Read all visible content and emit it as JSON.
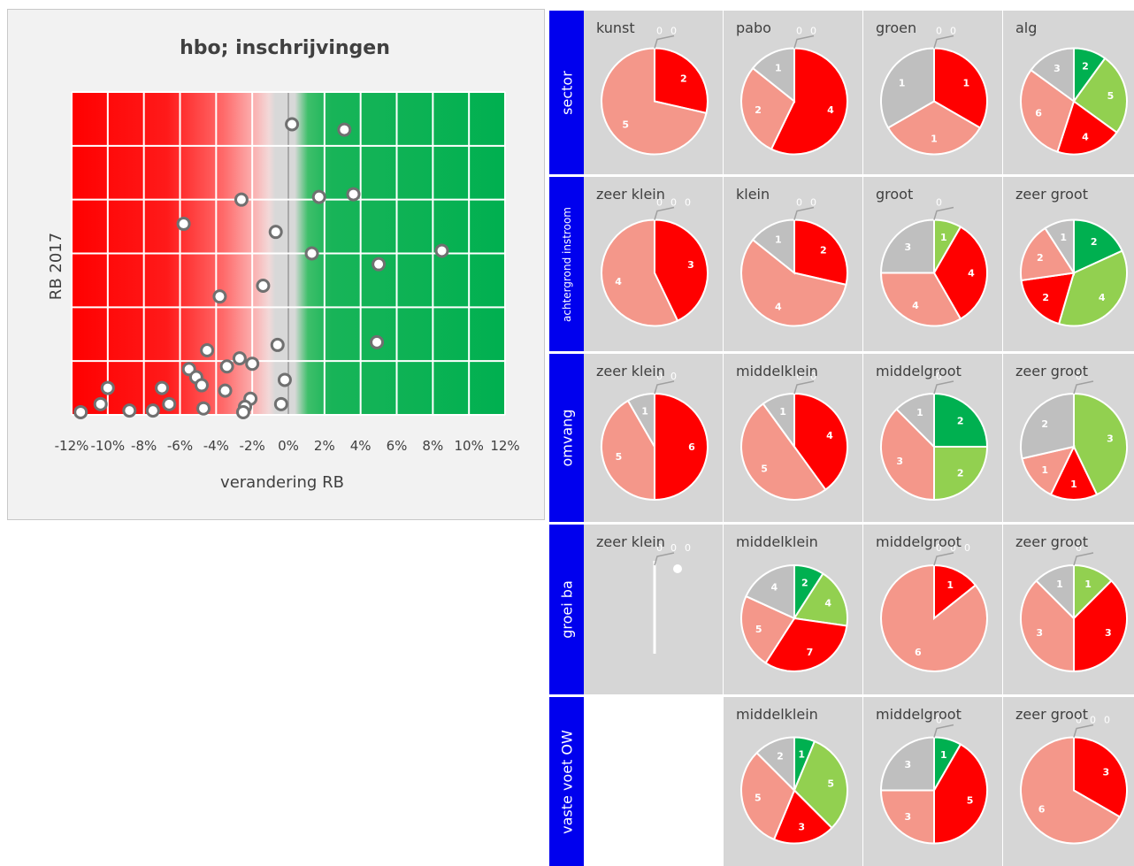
{
  "colors": {
    "dark_green": "#00b050",
    "light_green": "#92d050",
    "red": "#ff0000",
    "salmon": "#f4978a",
    "grey": "#bfbfbf",
    "row_label_bg": "#0000ee"
  },
  "chart_data": [
    {
      "type": "scatter",
      "title": "hbo; inschrijvingen",
      "xlabel": "verandering RB",
      "ylabel": "RB 2017",
      "xlim": [
        -12,
        12
      ],
      "x_ticks": [
        "-12%",
        "-10%",
        "-8%",
        "-6%",
        "-4%",
        "-2%",
        "0%",
        "2%",
        "4%",
        "6%",
        "8%",
        "10%",
        "12%"
      ],
      "grid": true,
      "points": [
        {
          "x": 0.2,
          "y": 5.4
        },
        {
          "x": 3.1,
          "y": 5.3
        },
        {
          "x": -2.6,
          "y": 4.0
        },
        {
          "x": 1.7,
          "y": 4.05
        },
        {
          "x": 3.6,
          "y": 4.1
        },
        {
          "x": -5.8,
          "y": 3.55
        },
        {
          "x": -0.7,
          "y": 3.4
        },
        {
          "x": 1.3,
          "y": 3.0
        },
        {
          "x": 8.5,
          "y": 3.05
        },
        {
          "x": 5.0,
          "y": 2.8
        },
        {
          "x": -1.4,
          "y": 2.4
        },
        {
          "x": -3.8,
          "y": 2.2
        },
        {
          "x": -0.6,
          "y": 1.3
        },
        {
          "x": 4.9,
          "y": 1.35
        },
        {
          "x": -4.5,
          "y": 1.2
        },
        {
          "x": -2.7,
          "y": 1.05
        },
        {
          "x": -2.0,
          "y": 0.95
        },
        {
          "x": -3.4,
          "y": 0.9
        },
        {
          "x": -5.5,
          "y": 0.85
        },
        {
          "x": -5.1,
          "y": 0.7
        },
        {
          "x": -4.8,
          "y": 0.55
        },
        {
          "x": -3.5,
          "y": 0.45
        },
        {
          "x": -10.0,
          "y": 0.5
        },
        {
          "x": -7.0,
          "y": 0.5
        },
        {
          "x": -0.2,
          "y": 0.65
        },
        {
          "x": -2.1,
          "y": 0.3
        },
        {
          "x": -6.6,
          "y": 0.2
        },
        {
          "x": -10.4,
          "y": 0.2
        },
        {
          "x": -2.4,
          "y": 0.15
        },
        {
          "x": -0.4,
          "y": 0.2
        },
        {
          "x": -4.7,
          "y": 0.12
        },
        {
          "x": -2.5,
          "y": 0.05
        },
        {
          "x": -11.5,
          "y": 0.05
        },
        {
          "x": -8.8,
          "y": 0.08
        },
        {
          "x": -7.5,
          "y": 0.08
        }
      ]
    },
    {
      "type": "pie",
      "row_labels": [
        "sector",
        "achtergrond instroom",
        "omvang",
        "groei ba",
        "vaste voet OW"
      ],
      "legend_note": "slice order per pie: dark green, light green, red, salmon, grey",
      "pies": [
        {
          "row": 0,
          "col": 0,
          "title": "kunst",
          "values": [
            0,
            0,
            2,
            5,
            0
          ],
          "zero_labels": [
            "0",
            "0"
          ]
        },
        {
          "row": 0,
          "col": 1,
          "title": "pabo",
          "values": [
            0,
            0,
            4,
            2,
            1
          ],
          "zero_labels": [
            "0",
            "0"
          ]
        },
        {
          "row": 0,
          "col": 2,
          "title": "groen",
          "values": [
            0,
            0,
            1,
            1,
            1
          ],
          "zero_labels": [
            "0",
            "0"
          ]
        },
        {
          "row": 0,
          "col": 3,
          "title": "alg",
          "values": [
            2,
            5,
            4,
            6,
            3
          ],
          "zero_labels": []
        },
        {
          "row": 1,
          "col": 0,
          "title": "zeer klein",
          "values": [
            0,
            0,
            3,
            4,
            0
          ],
          "zero_labels": [
            "0",
            "0",
            "0"
          ]
        },
        {
          "row": 1,
          "col": 1,
          "title": "klein",
          "values": [
            0,
            0,
            2,
            4,
            1
          ],
          "zero_labels": [
            "0",
            "0"
          ]
        },
        {
          "row": 1,
          "col": 2,
          "title": "groot",
          "values": [
            0,
            1,
            4,
            4,
            3
          ],
          "zero_labels": [
            "0"
          ]
        },
        {
          "row": 1,
          "col": 3,
          "title": "zeer groot",
          "values": [
            2,
            4,
            2,
            2,
            1
          ],
          "zero_labels": []
        },
        {
          "row": 2,
          "col": 0,
          "title": "zeer klein",
          "values": [
            0,
            0,
            6,
            5,
            1
          ],
          "zero_labels": [
            "0",
            "0"
          ]
        },
        {
          "row": 2,
          "col": 1,
          "title": "middelklein",
          "values": [
            0,
            0,
            4,
            5,
            1
          ],
          "zero_labels": [
            "0",
            "0"
          ]
        },
        {
          "row": 2,
          "col": 2,
          "title": "middelgroot",
          "values": [
            2,
            2,
            0,
            3,
            1
          ],
          "zero_labels": [
            "0"
          ]
        },
        {
          "row": 2,
          "col": 3,
          "title": "zeer groot",
          "values": [
            0,
            3,
            1,
            1,
            2
          ],
          "zero_labels": [
            "0"
          ]
        },
        {
          "row": 3,
          "col": 0,
          "title": "zeer klein",
          "values": [
            0,
            0,
            0,
            0,
            0
          ],
          "zero_labels": [
            "0",
            "0",
            "0"
          ]
        },
        {
          "row": 3,
          "col": 1,
          "title": "middelklein",
          "values": [
            2,
            4,
            7,
            5,
            4
          ],
          "zero_labels": []
        },
        {
          "row": 3,
          "col": 2,
          "title": "middelgroot",
          "values": [
            0,
            0,
            1,
            6,
            0
          ],
          "zero_labels": [
            "0",
            "0",
            "0"
          ]
        },
        {
          "row": 3,
          "col": 3,
          "title": "zeer groot",
          "values": [
            0,
            1,
            3,
            3,
            1
          ],
          "zero_labels": [
            "0"
          ]
        },
        {
          "row": 4,
          "col": 1,
          "title": "middelklein",
          "values": [
            1,
            5,
            3,
            5,
            2
          ],
          "zero_labels": []
        },
        {
          "row": 4,
          "col": 2,
          "title": "middelgroot",
          "values": [
            1,
            0,
            5,
            3,
            3
          ],
          "zero_labels": [
            "0"
          ]
        },
        {
          "row": 4,
          "col": 3,
          "title": "zeer groot",
          "values": [
            0,
            0,
            3,
            6,
            0
          ],
          "zero_labels": [
            "0",
            "0",
            "0"
          ]
        }
      ]
    }
  ]
}
